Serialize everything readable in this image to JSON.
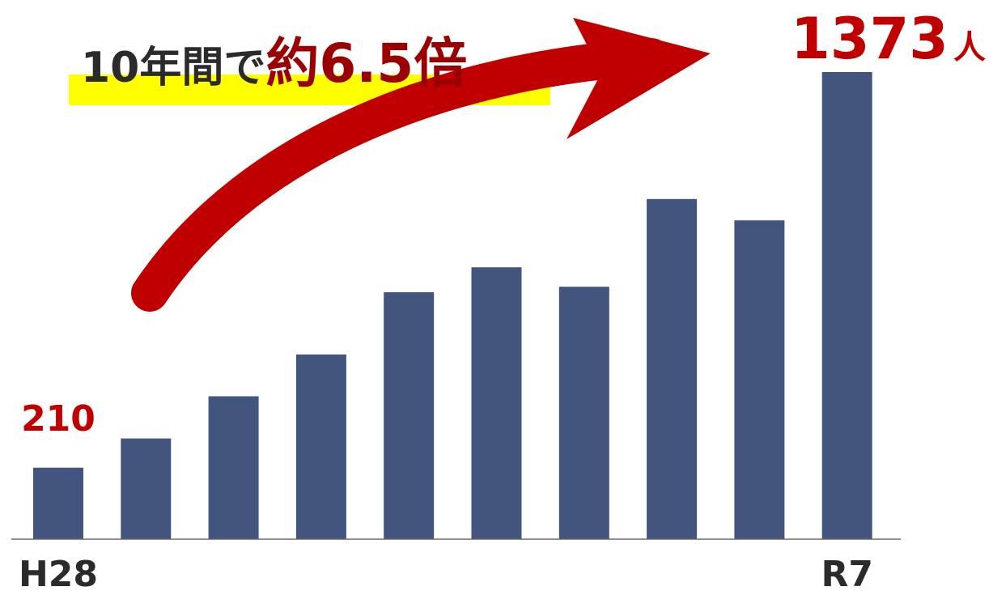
{
  "headline": {
    "lead": "10年間で",
    "emphasis": "約6.5倍"
  },
  "colors": {
    "bar": "#42557e",
    "accent": "#c00000",
    "highlight": "#ffff00",
    "text": "#2b2b2b"
  },
  "chart_data": {
    "type": "bar",
    "categories": [
      "H28",
      "",
      "",
      "",
      "",
      "",
      "",
      "",
      "",
      "R7"
    ],
    "values": [
      210,
      296,
      420,
      543,
      726,
      799,
      742,
      1000,
      937,
      1373
    ],
    "first_value_label": "210",
    "last_value_label": "1373",
    "unit": "人",
    "ylim": [
      0,
      1400
    ],
    "grid": false,
    "legend": "none"
  }
}
